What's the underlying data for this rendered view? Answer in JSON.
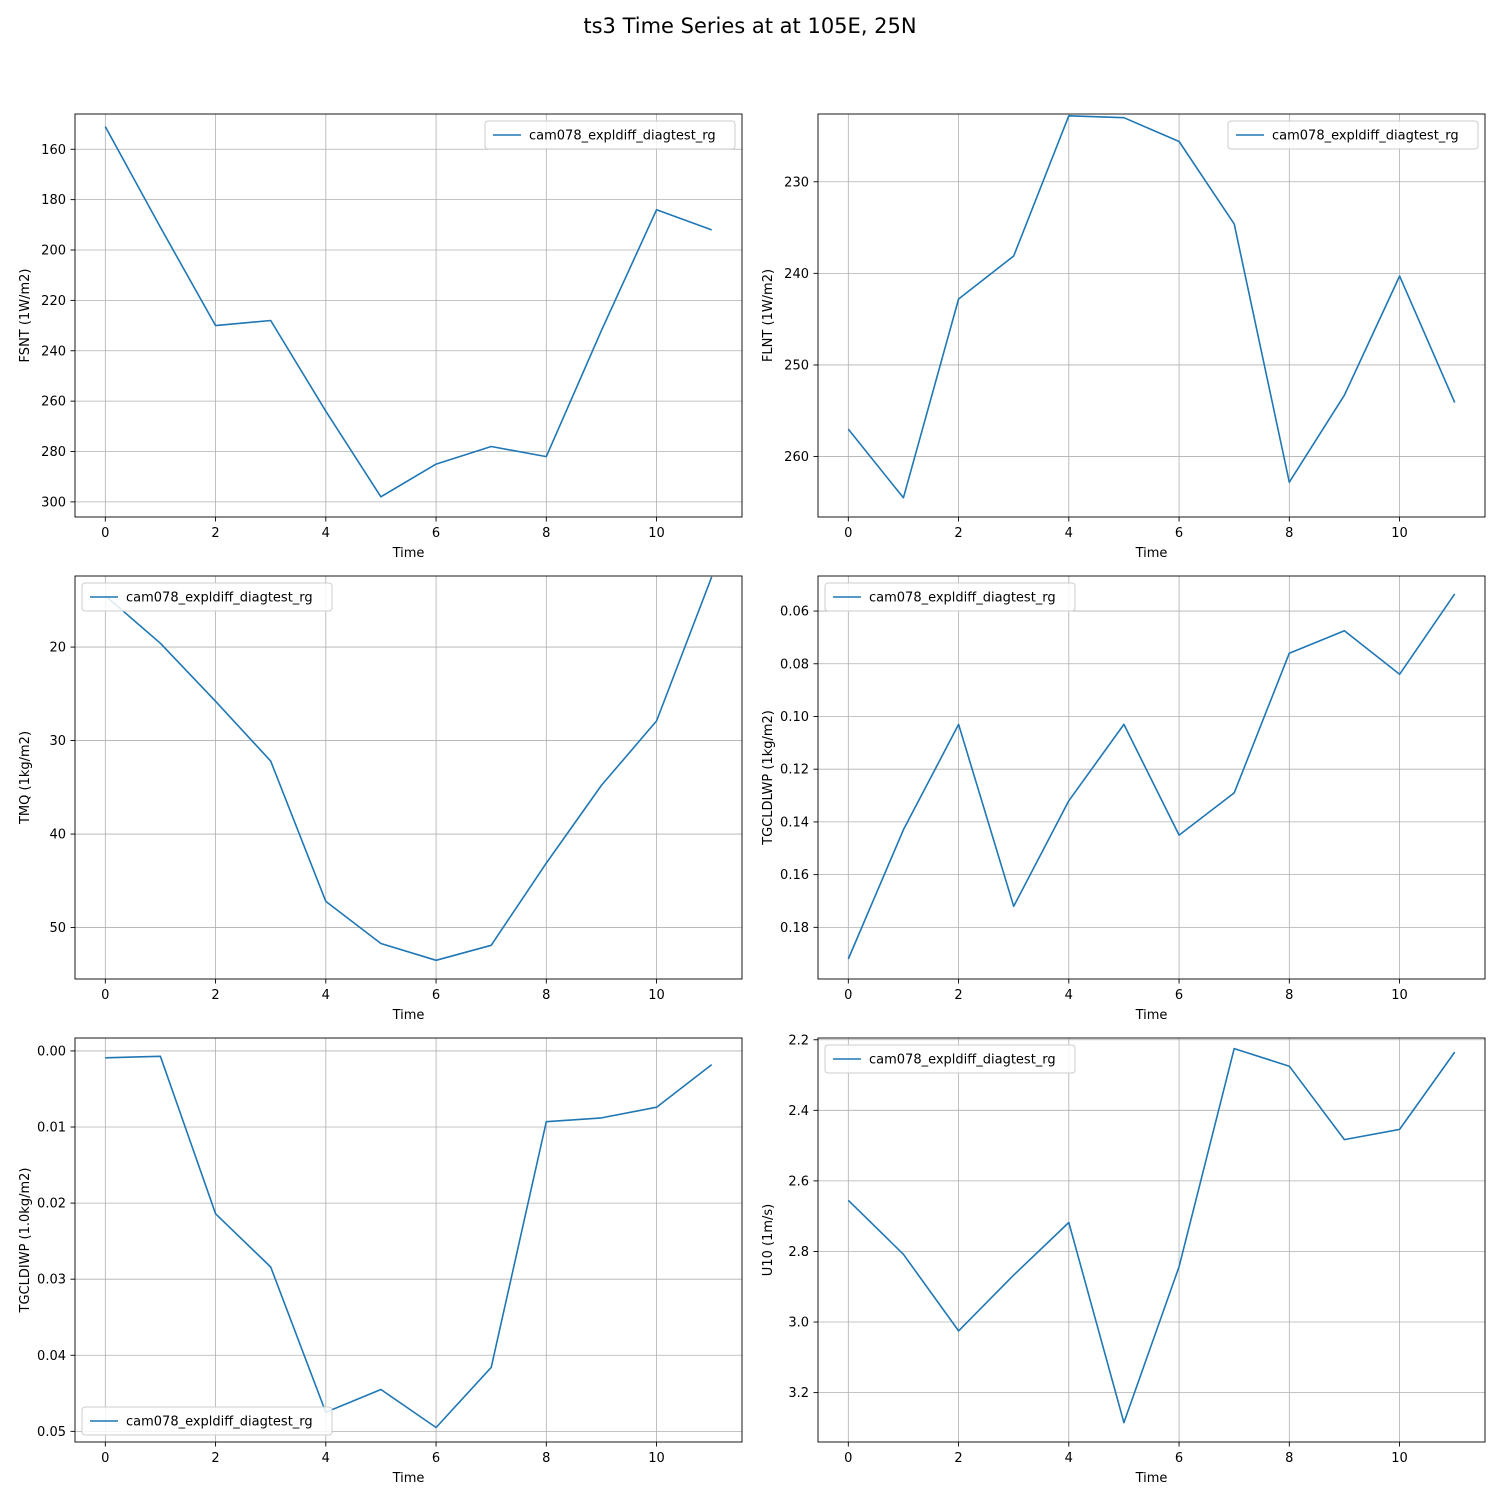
{
  "figure": {
    "title": "ts3 Time Series at at 105E, 25N"
  },
  "colors": {
    "series": "#1f77b4",
    "grid": "#b0b0b0",
    "axes": "#000000",
    "legend_border": "#cccccc"
  },
  "chart_data": [
    {
      "type": "line",
      "xlabel": "Time",
      "ylabel": "FSNT (1W/m2)",
      "y_inverted": true,
      "grid": true,
      "legend_placement": "upper-right",
      "xlim": [
        -0.55,
        11.55
      ],
      "ylim": [
        146,
        306
      ],
      "xticks": [
        0,
        2,
        4,
        6,
        8,
        10
      ],
      "yticks": [
        160,
        180,
        200,
        220,
        240,
        260,
        280,
        300
      ],
      "ytick_labels": [
        "160",
        "180",
        "200",
        "220",
        "240",
        "260",
        "280",
        "300"
      ],
      "series": [
        {
          "name": "cam078_expldiff_diagtest_rg",
          "x": [
            0,
            1,
            2,
            3,
            4,
            5,
            6,
            7,
            8,
            9,
            10,
            11
          ],
          "y": [
            151,
            191,
            230,
            228,
            264,
            298,
            285,
            278,
            282,
            232,
            184,
            192
          ]
        }
      ]
    },
    {
      "type": "line",
      "xlabel": "Time",
      "ylabel": "FLNT (1W/m2)",
      "y_inverted": true,
      "grid": true,
      "legend_placement": "upper-right",
      "xlim": [
        -0.55,
        11.55
      ],
      "ylim": [
        222.6,
        266.6
      ],
      "xticks": [
        0,
        2,
        4,
        6,
        8,
        10
      ],
      "yticks": [
        230,
        240,
        250,
        260
      ],
      "ytick_labels": [
        "230",
        "240",
        "250",
        "260"
      ],
      "series": [
        {
          "name": "cam078_expldiff_diagtest_rg",
          "x": [
            0,
            1,
            2,
            3,
            4,
            5,
            6,
            7,
            8,
            9,
            10,
            11
          ],
          "y": [
            257,
            264.5,
            242.8,
            238.1,
            222.8,
            223,
            225.6,
            234.6,
            262.8,
            253.3,
            240.3,
            254.1
          ]
        }
      ]
    },
    {
      "type": "line",
      "xlabel": "Time",
      "ylabel": "TMQ (1kg/m2)",
      "y_inverted": true,
      "grid": true,
      "legend_placement": "upper-left",
      "xlim": [
        -0.55,
        11.55
      ],
      "ylim": [
        12.4,
        55.5
      ],
      "xticks": [
        0,
        2,
        4,
        6,
        8,
        10
      ],
      "yticks": [
        20,
        30,
        40,
        50
      ],
      "ytick_labels": [
        "20",
        "30",
        "40",
        "50"
      ],
      "series": [
        {
          "name": "cam078_expldiff_diagtest_rg",
          "x": [
            0,
            1,
            2,
            3,
            4,
            5,
            6,
            7,
            8,
            9,
            10,
            11
          ],
          "y": [
            14.5,
            19.6,
            25.8,
            32.2,
            47.2,
            51.7,
            53.5,
            51.9,
            43.1,
            34.8,
            27.9,
            12.5
          ]
        }
      ]
    },
    {
      "type": "line",
      "xlabel": "Time",
      "ylabel": "TGCLDLWP (1kg/m2)",
      "y_inverted": true,
      "grid": true,
      "legend_placement": "upper-left",
      "xlim": [
        -0.55,
        11.55
      ],
      "ylim": [
        0.0467,
        0.1996
      ],
      "xticks": [
        0,
        2,
        4,
        6,
        8,
        10
      ],
      "yticks": [
        0.06,
        0.08,
        0.1,
        0.12,
        0.14,
        0.16,
        0.18
      ],
      "ytick_labels": [
        "0.06",
        "0.08",
        "0.10",
        "0.12",
        "0.14",
        "0.16",
        "0.18"
      ],
      "series": [
        {
          "name": "cam078_expldiff_diagtest_rg",
          "x": [
            0,
            1,
            2,
            3,
            4,
            5,
            6,
            7,
            8,
            9,
            10,
            11
          ],
          "y": [
            0.192,
            0.143,
            0.103,
            0.172,
            0.132,
            0.103,
            0.145,
            0.129,
            0.076,
            0.0675,
            0.084,
            0.0535
          ]
        }
      ]
    },
    {
      "type": "line",
      "xlabel": "Time",
      "ylabel": "TGCLDIWP (1.0kg/m2)",
      "y_inverted": true,
      "grid": true,
      "legend_placement": "lower-left",
      "xlim": [
        -0.55,
        11.55
      ],
      "ylim": [
        -0.0017,
        0.0514
      ],
      "xticks": [
        0,
        2,
        4,
        6,
        8,
        10
      ],
      "yticks": [
        0.0,
        0.01,
        0.02,
        0.03,
        0.04,
        0.05
      ],
      "ytick_labels": [
        "0.00",
        "0.01",
        "0.02",
        "0.03",
        "0.04",
        "0.05"
      ],
      "series": [
        {
          "name": "cam078_expldiff_diagtest_rg",
          "x": [
            0,
            1,
            2,
            3,
            4,
            5,
            6,
            7,
            8,
            9,
            10,
            11
          ],
          "y": [
            0.0009,
            0.0007,
            0.0214,
            0.0284,
            0.0475,
            0.0445,
            0.0495,
            0.0416,
            0.0093,
            0.0088,
            0.0074,
            0.0018
          ]
        }
      ]
    },
    {
      "type": "line",
      "xlabel": "Time",
      "ylabel": "U10 (1m/s)",
      "y_inverted": true,
      "grid": true,
      "legend_placement": "upper-left",
      "xlim": [
        -0.55,
        11.55
      ],
      "ylim": [
        2.195,
        3.34
      ],
      "xticks": [
        0,
        2,
        4,
        6,
        8,
        10
      ],
      "yticks": [
        2.2,
        2.4,
        2.6,
        2.8,
        3.0,
        3.2
      ],
      "ytick_labels": [
        "2.2",
        "2.4",
        "2.6",
        "2.8",
        "3.0",
        "3.2"
      ],
      "series": [
        {
          "name": "cam078_expldiff_diagtest_rg",
          "x": [
            0,
            1,
            2,
            3,
            4,
            5,
            6,
            7,
            8,
            9,
            10,
            11
          ],
          "y": [
            2.655,
            2.808,
            3.025,
            2.867,
            2.718,
            3.285,
            2.843,
            2.225,
            2.275,
            2.483,
            2.454,
            2.235
          ]
        }
      ]
    }
  ]
}
